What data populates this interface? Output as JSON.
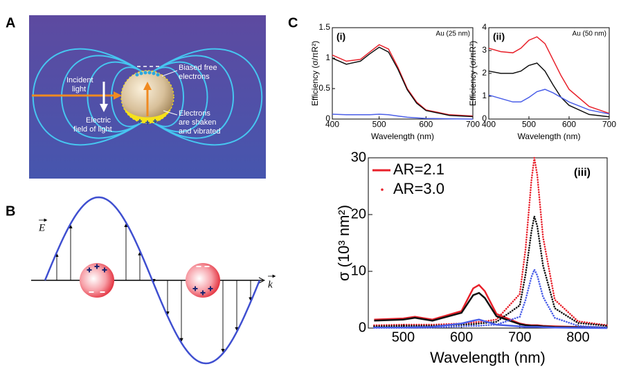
{
  "panel_labels": {
    "a": "A",
    "b": "B",
    "c": "C"
  },
  "diagram_a": {
    "incident_light": [
      "Incident",
      "light"
    ],
    "electric_field": [
      "Electric",
      "field of light"
    ],
    "biased_electrons": [
      "Biased free",
      "electrons"
    ],
    "electrons_shaken": [
      "Electrons",
      "are shaken",
      "and vibrated"
    ]
  },
  "diagram_b": {
    "field_label": "E",
    "wave_label": "k"
  },
  "chart_data": [
    {
      "type": "line",
      "label": "(i)",
      "annotation": "Au (25 nm)",
      "xlabel": "Wavelength (nm)",
      "ylabel": "Efficiency (σ/πR²)",
      "x": [
        400,
        430,
        460,
        480,
        500,
        520,
        540,
        560,
        580,
        600,
        650,
        700
      ],
      "xlim": [
        400,
        700
      ],
      "xticks": [
        400,
        500,
        600,
        700
      ],
      "ylim": [
        0,
        1.5
      ],
      "yticks": [
        0,
        0.5,
        1,
        1.5
      ],
      "series": [
        {
          "color": "#e8202a",
          "style": "line",
          "values": [
            1.05,
            0.95,
            0.98,
            1.1,
            1.22,
            1.15,
            0.85,
            0.5,
            0.28,
            0.15,
            0.07,
            0.05
          ]
        },
        {
          "color": "#111111",
          "style": "line",
          "values": [
            1.0,
            0.9,
            0.95,
            1.07,
            1.18,
            1.1,
            0.82,
            0.48,
            0.26,
            0.14,
            0.06,
            0.04
          ]
        },
        {
          "color": "#4a5ee8",
          "style": "line",
          "values": [
            0.08,
            0.07,
            0.07,
            0.07,
            0.08,
            0.07,
            0.05,
            0.03,
            0.02,
            0.01,
            0.005,
            0
          ]
        }
      ]
    },
    {
      "type": "line",
      "label": "(ii)",
      "annotation": "Au (50 nm)",
      "xlabel": "Wavelength (nm)",
      "ylabel": "Efficiency (σ/πR²)",
      "x": [
        400,
        430,
        460,
        480,
        500,
        520,
        540,
        560,
        580,
        600,
        650,
        700
      ],
      "xlim": [
        400,
        700
      ],
      "xticks": [
        400,
        500,
        600,
        700
      ],
      "ylim": [
        0,
        4
      ],
      "yticks": [
        0,
        1,
        2,
        3,
        4
      ],
      "series": [
        {
          "color": "#e8202a",
          "style": "line",
          "values": [
            3.1,
            2.95,
            2.9,
            3.1,
            3.45,
            3.6,
            3.3,
            2.6,
            1.9,
            1.3,
            0.55,
            0.25
          ]
        },
        {
          "color": "#111111",
          "style": "line",
          "values": [
            2.1,
            2.0,
            2.0,
            2.1,
            2.35,
            2.45,
            2.1,
            1.5,
            0.95,
            0.6,
            0.2,
            0.1
          ]
        },
        {
          "color": "#4a5ee8",
          "style": "line",
          "values": [
            1.05,
            0.9,
            0.75,
            0.75,
            0.95,
            1.2,
            1.3,
            1.15,
            0.95,
            0.75,
            0.4,
            0.22
          ]
        }
      ]
    },
    {
      "type": "line",
      "label": "(iii)",
      "xlabel": "Wavelength (nm)",
      "ylabel": "σ (10³ nm²)",
      "legend": "upper left",
      "x": [
        450,
        500,
        520,
        550,
        600,
        620,
        630,
        640,
        660,
        700,
        710,
        720,
        725,
        730,
        740,
        760,
        800,
        850
      ],
      "xlim": [
        440,
        850
      ],
      "xticks": [
        500,
        600,
        700,
        800
      ],
      "ylim": [
        0,
        30
      ],
      "yticks": [
        0,
        10,
        20,
        30
      ],
      "series": [
        {
          "name": "AR=2.1",
          "color": "#e8202a",
          "style": "line",
          "values": [
            1.5,
            1.7,
            2.0,
            1.5,
            3,
            7,
            7.6,
            6.5,
            2.5,
            0.8,
            0.6,
            0.5,
            0.5,
            0.5,
            0.4,
            0.3,
            0.2,
            0.1
          ]
        },
        {
          "name": "AR=3.0",
          "color": "#e8202a",
          "style": "dots",
          "values": [
            0.5,
            0.6,
            0.6,
            0.6,
            0.8,
            1.0,
            1.1,
            1.2,
            1.5,
            6,
            14,
            26,
            30,
            27,
            16,
            5,
            1.2,
            0.5
          ]
        },
        {
          "color": "#111111",
          "style": "line",
          "values": [
            1.3,
            1.5,
            1.8,
            1.3,
            2.7,
            5.8,
            6.2,
            5.3,
            2.1,
            0.7,
            0.5,
            0.4,
            0.4,
            0.4,
            0.3,
            0.2,
            0.15,
            0.1
          ]
        },
        {
          "color": "#111111",
          "style": "dots",
          "values": [
            0.3,
            0.4,
            0.4,
            0.4,
            0.6,
            0.7,
            0.8,
            0.9,
            1.1,
            4,
            9.5,
            17,
            19.7,
            18,
            11,
            3.5,
            0.9,
            0.4
          ]
        },
        {
          "color": "#4a5ee8",
          "style": "line",
          "values": [
            0.1,
            0.1,
            0.15,
            0.2,
            0.8,
            1.3,
            1.5,
            1.2,
            0.6,
            0.3,
            0.2,
            0.2,
            0.2,
            0.2,
            0.15,
            0.1,
            0.05,
            0
          ]
        },
        {
          "color": "#4a5ee8",
          "style": "dots",
          "values": [
            0.05,
            0.05,
            0.05,
            0.1,
            0.3,
            0.4,
            0.4,
            0.5,
            0.6,
            2,
            5,
            9,
            10.3,
            9.3,
            5.5,
            1.8,
            0.4,
            0.1
          ]
        }
      ]
    }
  ]
}
